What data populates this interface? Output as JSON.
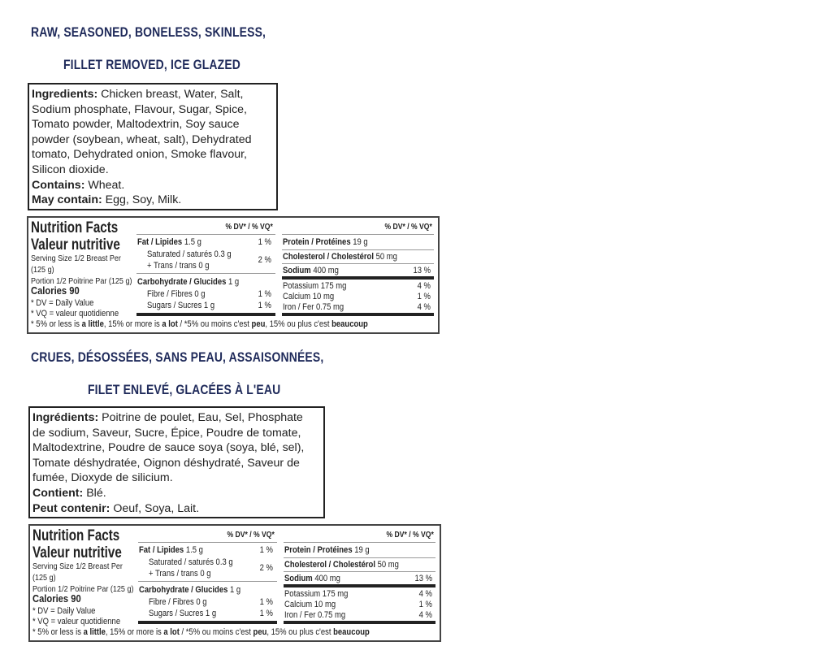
{
  "english": {
    "heading_line1": "RAW, SEASONED, BONELESS, SKINLESS,",
    "heading_line2": "FILLET REMOVED, ICE GLAZED",
    "ingredients_label": "Ingredients:",
    "ingredients_lines": [
      "Chicken breast, Water, Salt,",
      "Sodium phosphate, Flavour, Sugar, Spice,",
      "Tomato powder, Maltodextrin, Soy sauce",
      "powder (soybean, wheat, salt), Dehydrated",
      "tomato, Dehydrated onion, Smoke flavour,",
      "Silicon dioxide."
    ],
    "contains_label": "Contains:",
    "contains": "Wheat.",
    "may_contain_label": "May contain:",
    "may_contain": "Egg, Soy, Milk."
  },
  "french": {
    "heading_line1": "CRUES, DÉSOSSÉES, SANS PEAU, ASSAISONNÉES,",
    "heading_line2": "FILET ENLEVÉ, GLACÉES À L'EAU",
    "ingredients_label": "Ingrédients:",
    "ingredients_lines": [
      "Poitrine de poulet, Eau, Sel, Phosphate",
      "de sodium, Saveur, Sucre, Épice, Poudre de tomate,",
      "Maltodextrine, Poudre de sauce soya (soya, blé, sel),",
      "Tomate déshydratée, Oignon déshydraté, Saveur de",
      "fumée, Dioxyde de silicium."
    ],
    "contains_label": "Contient:",
    "contains": "Blé.",
    "may_contain_label": "Peut contenir:",
    "may_contain": "Oeuf, Soya, Lait."
  },
  "nutrition": {
    "title_en": "Nutrition Facts",
    "title_fr": "Valeur nutritive",
    "serving_line1": "Serving Size 1/2 Breast Per",
    "serving_line2": "(125 g)",
    "portion": "Portion 1/2 Poitrine Par (125 g)",
    "calories": "Calories 90",
    "dv_note": "* DV = Daily Value",
    "vq_note": "* VQ = valeur quotidienne",
    "dv_header": "% DV* / % VQ*",
    "fat_label": "Fat / Lipides",
    "fat": "1.5 g",
    "fat_dv": "1 %",
    "sat_label": "Saturated / saturés 0.3 g",
    "trans_label": "+ Trans / trans 0 g",
    "sat_trans_dv": "2 %",
    "carb_label": "Carbohydrate / Glucides",
    "carb": "1 g",
    "fibre_label": "Fibre / Fibres 0 g",
    "fibre_dv": "1 %",
    "sugars_label": "Sugars / Sucres 1 g",
    "sugars_dv": "1 %",
    "protein_label": "Protein / Protéines",
    "protein": "19 g",
    "chol_label": "Cholesterol / Cholestérol",
    "chol": "50 mg",
    "sodium_label": "Sodium",
    "sodium": "400 mg",
    "sodium_dv": "13 %",
    "potassium_label": "Potassium 175 mg",
    "potassium_dv": "4 %",
    "calcium_label": "Calcium 10 mg",
    "calcium_dv": "1 %",
    "iron_label": "Iron / Fer 0.75 mg",
    "iron_dv": "4 %",
    "foot_1": "* 5% or less is ",
    "foot_2": "a little",
    "foot_3": ", 15% or more is ",
    "foot_4": "a lot",
    "foot_5": " / *5% ou moins c'est ",
    "foot_6": "peu",
    "foot_7": ", 15% ou plus c'est ",
    "foot_8": "beaucoup"
  }
}
